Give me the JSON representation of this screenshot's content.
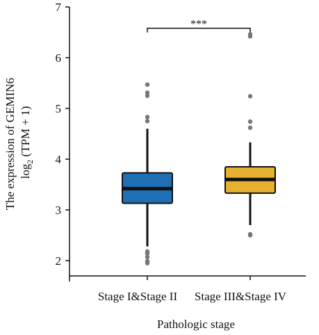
{
  "chart_data": {
    "type": "boxplot",
    "title": "",
    "xlabel": "Pathologic stage",
    "ylabel_line1": "The expression of GEMIN6",
    "ylabel_line2_prefix": "log",
    "ylabel_line2_subscript": "2",
    "ylabel_line2_suffix": " (TPM + 1)",
    "ylim": [
      1.85,
      7.0
    ],
    "yticks": [
      2,
      3,
      4,
      5,
      6,
      7
    ],
    "grid": false,
    "significance": {
      "label": "***",
      "between": [
        0,
        1
      ],
      "y": 6.58
    },
    "series": [
      {
        "category": "Stage I&Stage II",
        "color": "#1f6fb5",
        "whisker_low": 2.28,
        "q1": 3.13,
        "median": 3.42,
        "q3": 3.73,
        "whisker_high": 4.6,
        "outliers": [
          1.95,
          1.99,
          2.07,
          2.14,
          2.16,
          2.18,
          4.75,
          4.83,
          5.25,
          5.31,
          5.47
        ]
      },
      {
        "category": "Stage III&Stage IV",
        "color": "#e6b030",
        "whisker_low": 2.7,
        "q1": 3.33,
        "median": 3.6,
        "q3": 3.85,
        "whisker_high": 4.33,
        "outliers": [
          2.5,
          2.52,
          4.62,
          4.74,
          5.24,
          6.42,
          6.46
        ]
      }
    ]
  }
}
